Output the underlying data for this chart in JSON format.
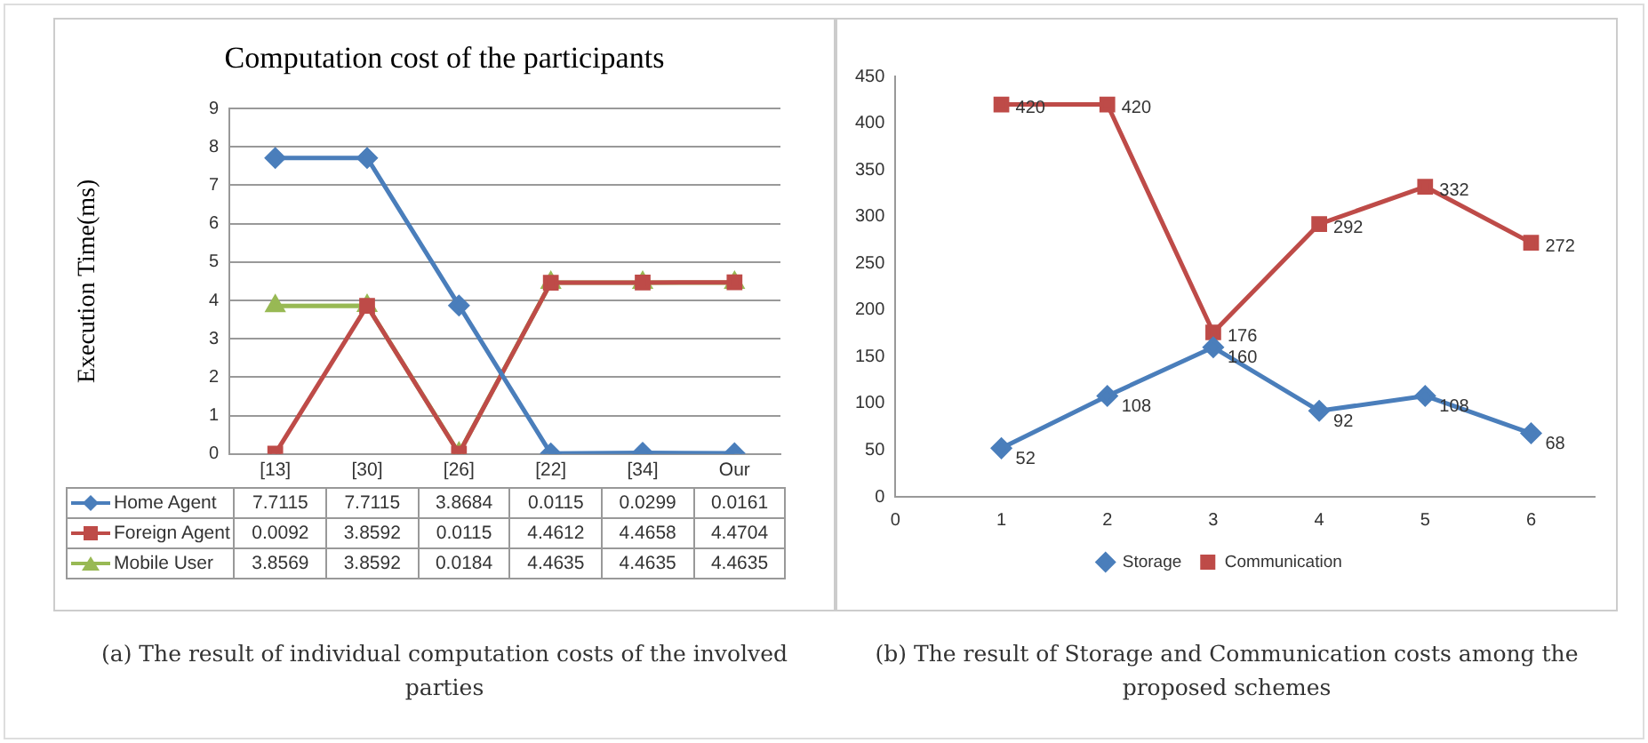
{
  "chart_data": [
    {
      "type": "line",
      "title": "Computation cost of the participants",
      "ylabel": "Execution Time(ms)",
      "categories": [
        "[13]",
        "[30]",
        "[26]",
        "[22]",
        "[34]",
        "Our"
      ],
      "series": [
        {
          "name": "Home Agent",
          "color": "#4a7ebb",
          "marker": "diamond",
          "values": [
            7.7115,
            7.7115,
            3.8684,
            0.0115,
            0.0299,
            0.0161
          ]
        },
        {
          "name": "Foreign Agent",
          "color": "#be4b48",
          "marker": "square",
          "values": [
            0.0092,
            3.8592,
            0.0115,
            4.4612,
            4.4658,
            4.4704
          ]
        },
        {
          "name": "Mobile User",
          "color": "#98b954",
          "marker": "triangle",
          "values": [
            3.8569,
            3.8592,
            0.0184,
            4.4635,
            4.4635,
            4.4635
          ]
        }
      ],
      "ylim": [
        0,
        9
      ],
      "yticks": [
        0,
        1,
        2,
        3,
        4,
        5,
        6,
        7,
        8,
        9
      ],
      "grid": "y",
      "legend": "bottom",
      "data_labels": true,
      "annotations": [
        "(a) The result of individual computation costs of the involved parties"
      ]
    },
    {
      "type": "line",
      "x": [
        1,
        2,
        3,
        4,
        5,
        6
      ],
      "series": [
        {
          "name": "Storage",
          "color": "#4a7ebb",
          "marker": "diamond",
          "values": [
            52,
            108,
            160,
            92,
            108,
            68
          ]
        },
        {
          "name": "Communication",
          "color": "#be4b48",
          "marker": "square",
          "values": [
            420,
            420,
            176,
            292,
            332,
            272
          ]
        }
      ],
      "xlim": [
        0,
        6.6
      ],
      "xticks": [
        0,
        1,
        2,
        3,
        4,
        5,
        6
      ],
      "ylim": [
        0,
        450
      ],
      "yticks": [
        0,
        50,
        100,
        150,
        200,
        250,
        300,
        350,
        400,
        450
      ],
      "grid": false,
      "legend": "bottom",
      "data_labels": true,
      "annotations": [
        "(b) The result of Storage and Communication costs among the proposed schemes"
      ]
    }
  ]
}
